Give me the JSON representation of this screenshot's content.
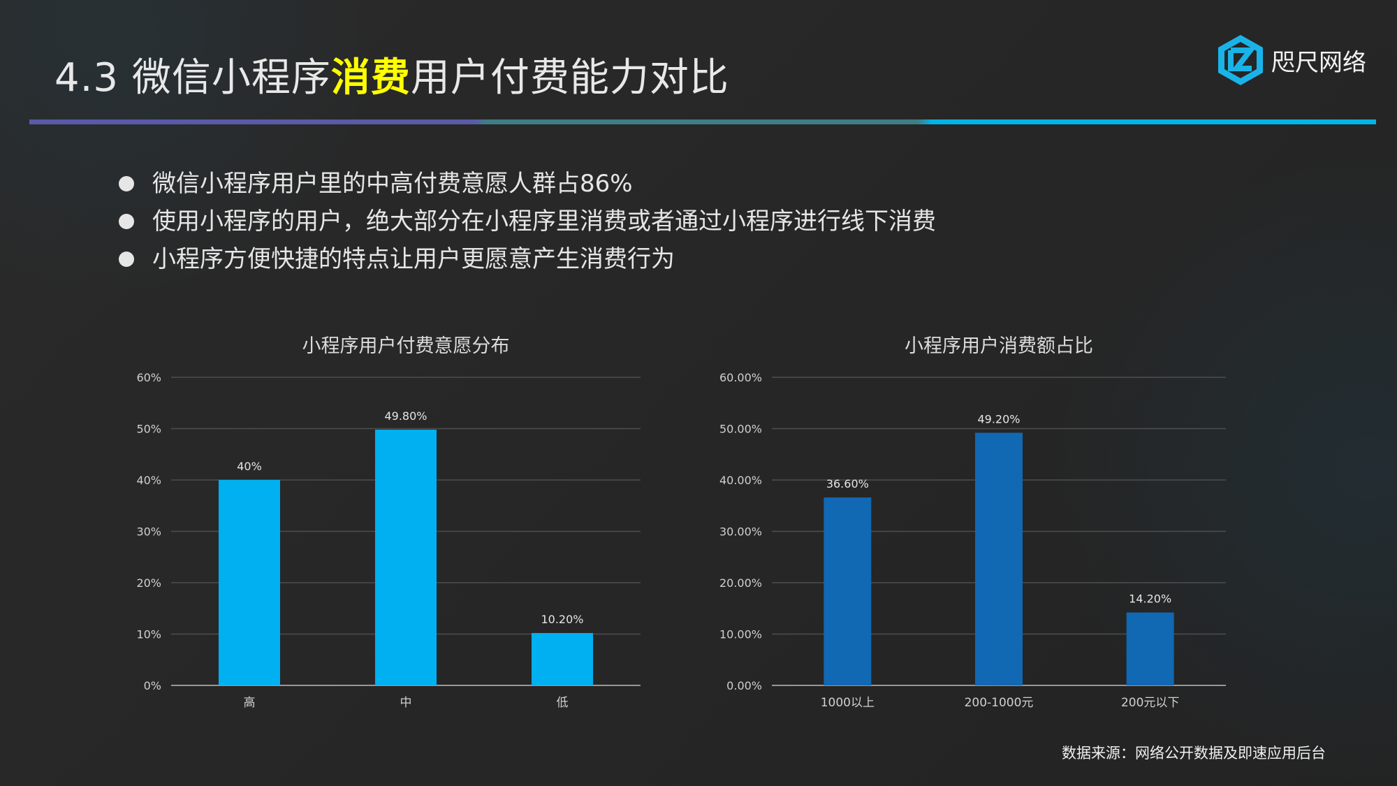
{
  "slide": {
    "title_prefix": "4.3 微信小程序",
    "title_highlight": "消费",
    "title_suffix": "用户付费能力对比",
    "logo_text": "咫尺网络",
    "bullets": [
      "微信小程序用户里的中高付费意愿人群占86%",
      "使用小程序的用户，绝大部分在小程序里消费或者通过小程序进行线下消费",
      "小程序方便快捷的特点让用户更愿意产生消费行为"
    ],
    "source": "数据来源：网络公开数据及即速应用后台",
    "colors": {
      "highlight": "#ffff00",
      "bar_left": "#00b0f0",
      "bar_right": "#1168b3"
    }
  },
  "chart_data": [
    {
      "type": "bar",
      "title": "小程序用户付费意愿分布",
      "categories": [
        "高",
        "中",
        "低"
      ],
      "values": [
        40,
        49.8,
        10.2
      ],
      "data_labels": [
        "40%",
        "49.80%",
        "10.20%"
      ],
      "ylim": [
        0,
        60
      ],
      "yticks": [
        0,
        10,
        20,
        30,
        40,
        50,
        60
      ],
      "ytick_labels": [
        "0%",
        "10%",
        "20%",
        "30%",
        "40%",
        "50%",
        "60%"
      ],
      "grid": true,
      "color": "#00b0f0"
    },
    {
      "type": "bar",
      "title": "小程序用户消费额占比",
      "categories": [
        "1000以上",
        "200-1000元",
        "200元以下"
      ],
      "values": [
        36.6,
        49.2,
        14.2
      ],
      "data_labels": [
        "36.60%",
        "49.20%",
        "14.20%"
      ],
      "ylim": [
        0,
        60
      ],
      "yticks": [
        0,
        10,
        20,
        30,
        40,
        50,
        60
      ],
      "ytick_labels": [
        "0.00%",
        "10.00%",
        "20.00%",
        "30.00%",
        "40.00%",
        "50.00%",
        "60.00%"
      ],
      "grid": true,
      "color": "#1168b3"
    }
  ]
}
